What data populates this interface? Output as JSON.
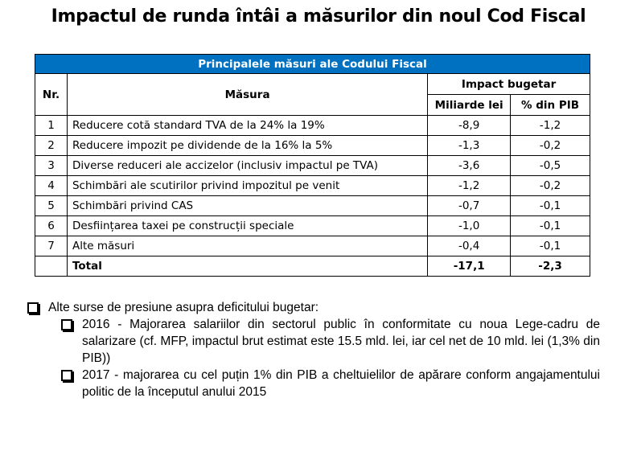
{
  "title": "Impactul de runda întâi a măsurilor din noul Cod Fiscal",
  "table": {
    "caption": "Principalele măsuri ale Codului Fiscal",
    "headers": {
      "nr": "Nr.",
      "measure": "Măsura",
      "impact": "Impact bugetar",
      "bn_lei": "Miliarde lei",
      "pct_gdp": "% din PIB"
    },
    "rows": [
      {
        "nr": "1",
        "measure": "Reducere cotă standard TVA de la 24% la 19%",
        "bn": "-8,9",
        "pct": "-1,2"
      },
      {
        "nr": "2",
        "measure": "Reducere impozit pe dividende de la 16% la 5%",
        "bn": "-1,3",
        "pct": "-0,2"
      },
      {
        "nr": "3",
        "measure": "Diverse reduceri ale accizelor (inclusiv impactul pe TVA)",
        "bn": "-3,6",
        "pct": "-0,5"
      },
      {
        "nr": "4",
        "measure": "Schimbări ale scutirilor privind impozitul pe venit",
        "bn": "-1,2",
        "pct": "-0,2"
      },
      {
        "nr": "5",
        "measure": "Schimbări privind CAS",
        "bn": "-0,7",
        "pct": "-0,1"
      },
      {
        "nr": "6",
        "measure": "Desființarea taxei pe construcții speciale",
        "bn": "-1,0",
        "pct": "-0,1"
      },
      {
        "nr": "7",
        "measure": "Alte măsuri",
        "bn": "-0,4",
        "pct": "-0,1"
      }
    ],
    "total": {
      "label": "Total",
      "bn": "-17,1",
      "pct": "-2,3"
    }
  },
  "bullets": {
    "main": "Alte surse de presiune asupra deficitului bugetar:",
    "sub": [
      "2016 - Majorarea salariilor din sectorul public în conformitate cu noua Lege-cadru de salarizare  (cf. MFP, impactul brut estimat este 15.5 mld. lei, iar cel net de  10 mld. lei (1,3% din PIB))",
      "2017 -  majorarea cu cel puțin 1% din PIB a cheltuielilor de apărare conform angajamentului politic de la începutul anului 2015"
    ]
  },
  "colors": {
    "header_band": "#0070C0"
  }
}
